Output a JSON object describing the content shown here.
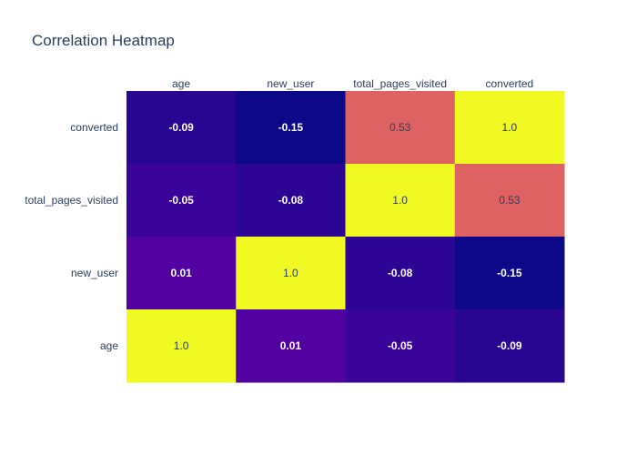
{
  "chart_data": {
    "type": "heatmap",
    "title": "Correlation Heatmap",
    "x_categories": [
      "age",
      "new_user",
      "total_pages_visited",
      "converted"
    ],
    "y_categories": [
      "converted",
      "total_pages_visited",
      "new_user",
      "age"
    ],
    "values": [
      [
        -0.09,
        -0.15,
        0.53,
        1.0
      ],
      [
        -0.05,
        -0.08,
        1.0,
        0.53
      ],
      [
        0.01,
        1.0,
        -0.08,
        -0.15
      ],
      [
        1.0,
        0.01,
        -0.05,
        -0.09
      ]
    ],
    "labels": [
      [
        "-0.09",
        "-0.15",
        "0.53",
        "1.0"
      ],
      [
        "-0.05",
        "-0.08",
        "1.0",
        "0.53"
      ],
      [
        "0.01",
        "1.0",
        "-0.08",
        "-0.15"
      ],
      [
        "1.0",
        "0.01",
        "-0.05",
        "-0.09"
      ]
    ],
    "x_axis_position": "top",
    "colorscale": "plasma",
    "zlim": [
      -0.15,
      1.0
    ],
    "grid": false,
    "legend": "none"
  }
}
